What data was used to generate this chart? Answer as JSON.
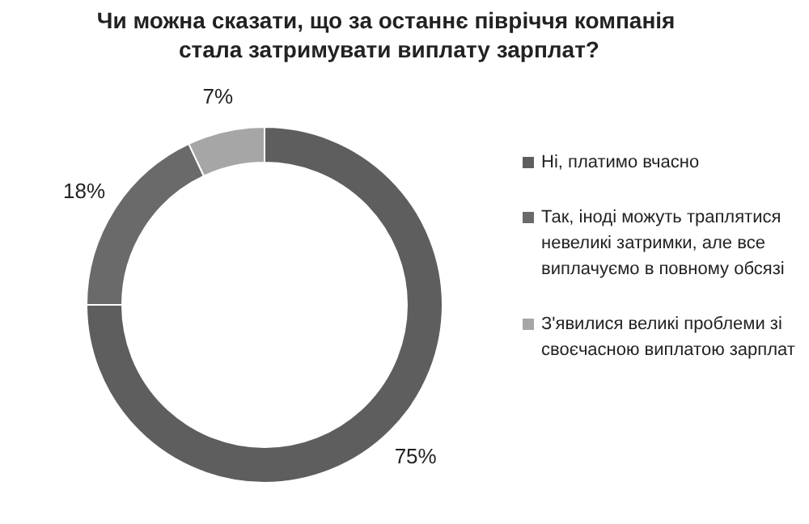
{
  "chart_data": {
    "type": "donut",
    "title": "Чи можна сказати,  що за останнє півріччя компанія стала затримувати виплату зарплат?",
    "categories": [
      "Ні, платимо вчасно",
      "Так, іноді можуть траплятися невеликі затримки, але все виплачуємо в повному обсязі",
      "З'явилися великі проблеми зі своєчасною виплатою зарплат"
    ],
    "values": [
      75,
      18,
      7
    ],
    "colors": [
      "#5e5e5e",
      "#6a6a6a",
      "#a6a6a6"
    ],
    "value_labels": [
      "75%",
      "18%",
      "7%"
    ],
    "legend": "right"
  }
}
